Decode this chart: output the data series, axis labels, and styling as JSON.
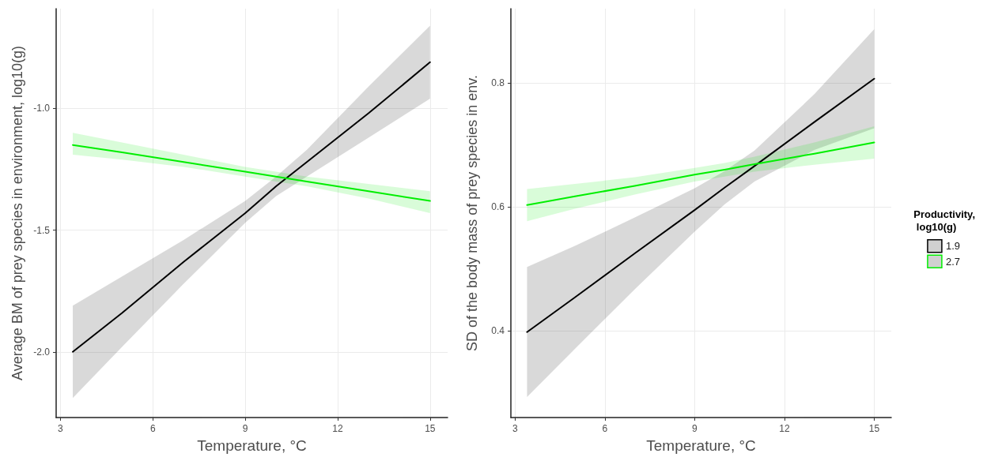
{
  "chart_data": [
    {
      "type": "line",
      "xlabel": "Temperature, °C",
      "ylabel": "Average BM of prey species in environment, log10(g)",
      "xlim": [
        2.86,
        15.57
      ],
      "ylim": [
        -2.27,
        -0.59
      ],
      "xticks": [
        3,
        6,
        9,
        12,
        15
      ],
      "yticks": [
        {
          "value": -2,
          "label": "-2.0"
        },
        {
          "value": -1.5,
          "label": "-1.5"
        },
        {
          "value": -1,
          "label": "-1.0"
        }
      ],
      "grid": true,
      "marker": "none",
      "line_style": "solid",
      "x": [
        3.4,
        5,
        7,
        9,
        10,
        11,
        13,
        15
      ],
      "series": [
        {
          "color": "#000000",
          "values": [
            -2.0,
            -1.84,
            -1.63,
            -1.43,
            -1.32,
            -1.22,
            -1.02,
            -0.81
          ],
          "lower": [
            -2.19,
            -1.98,
            -1.72,
            -1.47,
            -1.36,
            -1.28,
            -1.12,
            -0.96
          ],
          "upper": [
            -1.81,
            -1.69,
            -1.54,
            -1.38,
            -1.28,
            -1.17,
            -0.91,
            -0.66
          ]
        },
        {
          "color": "#00ee00",
          "values": [
            -1.15,
            -1.18,
            -1.22,
            -1.26,
            -1.28,
            -1.3,
            -1.34,
            -1.38
          ],
          "lower": [
            -1.19,
            -1.21,
            -1.24,
            -1.28,
            -1.3,
            -1.32,
            -1.37,
            -1.43
          ],
          "upper": [
            -1.1,
            -1.14,
            -1.19,
            -1.24,
            -1.26,
            -1.28,
            -1.31,
            -1.34
          ]
        }
      ]
    },
    {
      "type": "line",
      "xlabel": "Temperature, °C",
      "ylabel": "SD of the body mass of prey species in env.",
      "legend_title": "Productivity,\n log10(g)",
      "legend": "right",
      "xlim": [
        2.86,
        15.57
      ],
      "ylim": [
        0.26,
        0.92
      ],
      "xticks": [
        3,
        6,
        9,
        12,
        15
      ],
      "yticks": [
        0.4,
        0.6,
        0.8
      ],
      "grid": true,
      "marker": "none",
      "line_style": "solid",
      "x": [
        3.4,
        5,
        7,
        9,
        10,
        11,
        13,
        15
      ],
      "series": [
        {
          "name": "1.9",
          "color": "#000000",
          "values": [
            0.398,
            0.454,
            0.525,
            0.595,
            0.631,
            0.666,
            0.737,
            0.807
          ],
          "lower": [
            0.293,
            0.371,
            0.467,
            0.56,
            0.604,
            0.641,
            0.692,
            0.727
          ],
          "upper": [
            0.503,
            0.537,
            0.583,
            0.63,
            0.658,
            0.691,
            0.782,
            0.887
          ]
        },
        {
          "name": "2.7",
          "color": "#00ee00",
          "values": [
            0.603,
            0.617,
            0.634,
            0.652,
            0.66,
            0.669,
            0.686,
            0.704
          ],
          "lower": [
            0.577,
            0.597,
            0.62,
            0.641,
            0.649,
            0.657,
            0.668,
            0.678
          ],
          "upper": [
            0.629,
            0.637,
            0.648,
            0.663,
            0.671,
            0.681,
            0.704,
            0.73
          ]
        }
      ]
    }
  ]
}
